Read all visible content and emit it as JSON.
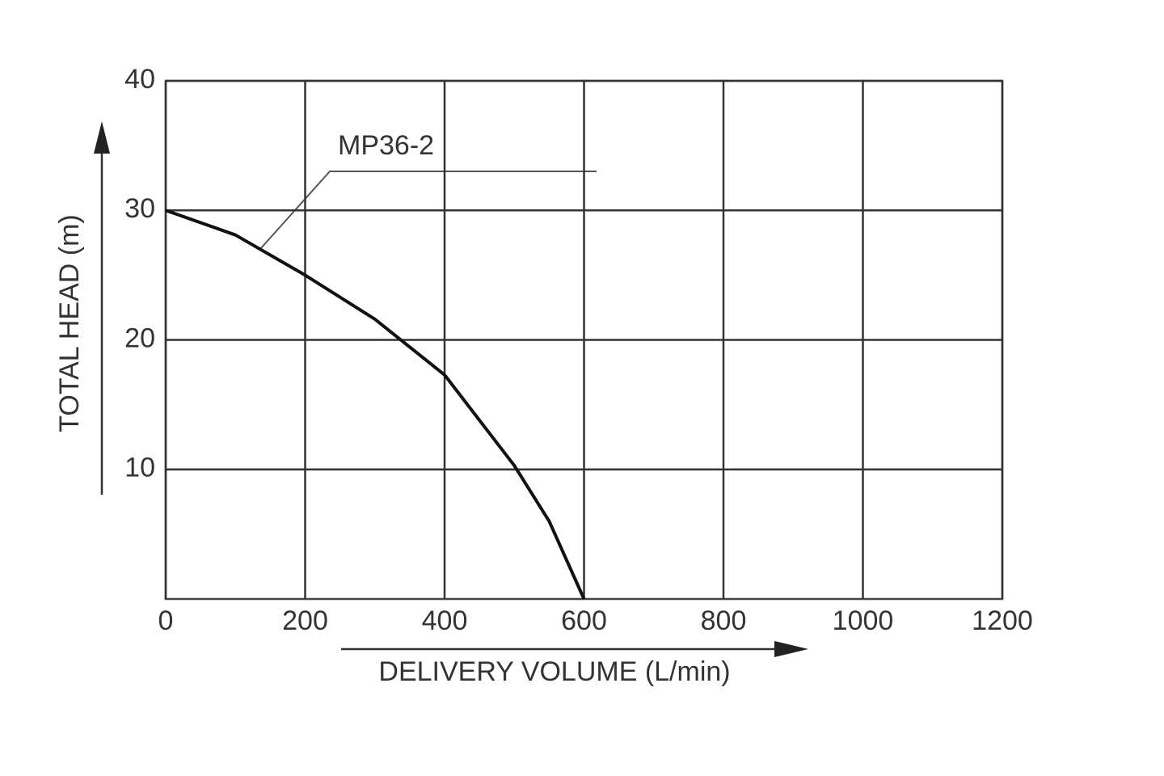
{
  "chart_data": {
    "type": "line",
    "x": [
      0,
      100,
      200,
      300,
      400,
      500,
      550,
      600
    ],
    "series": [
      {
        "name": "MP36-2",
        "color": "#111111",
        "values": [
          30,
          28.1,
          25,
          21.6,
          17.3,
          10.3,
          6,
          0
        ]
      }
    ],
    "xlim": [
      0,
      1200
    ],
    "ylim": [
      0,
      40
    ],
    "xticks": [
      0,
      200,
      400,
      600,
      800,
      1000,
      1200
    ],
    "yticks": [
      10,
      20,
      30,
      40
    ],
    "xlabel": "DELIVERY VOLUME (L/min)",
    "ylabel": "TOTAL HEAD (m)",
    "grid": true
  }
}
